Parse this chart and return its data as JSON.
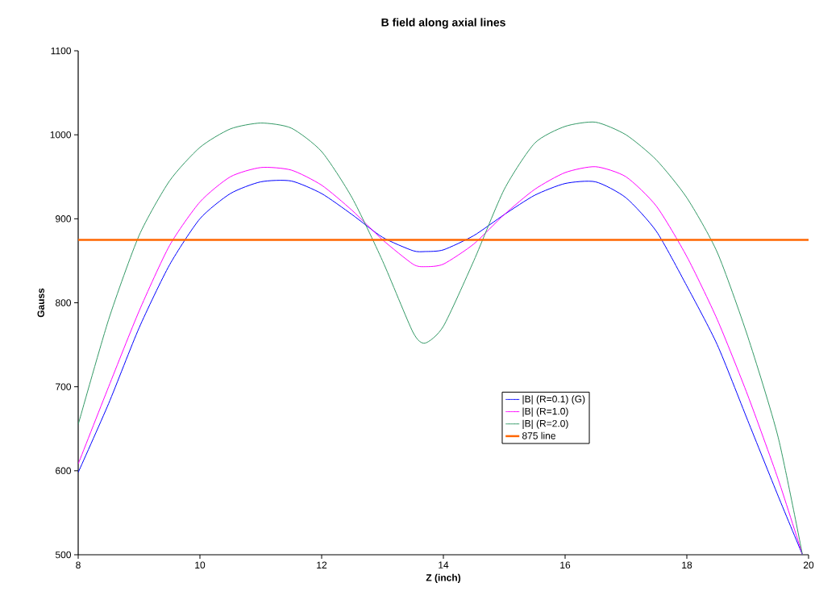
{
  "chart_data": {
    "type": "line",
    "title": "B field along axial lines",
    "xlabel": "Z (inch)",
    "ylabel": "Gauss",
    "x": [
      8,
      8.5,
      9,
      9.5,
      10,
      10.5,
      11,
      11.5,
      12,
      12.5,
      13,
      13.5,
      13.7,
      14,
      14.5,
      15,
      15.5,
      16,
      16.5,
      17,
      17.5,
      18,
      18.5,
      19,
      19.5,
      19.9
    ],
    "series": [
      {
        "name": "|B| (R=0.1) (G)",
        "color": "#0000ff",
        "values": [
          598,
          680,
          770,
          845,
          900,
          930,
          944,
          945,
          930,
          905,
          878,
          862,
          861,
          863,
          880,
          905,
          928,
          942,
          944,
          925,
          885,
          820,
          750,
          660,
          570,
          500
        ]
      },
      {
        "name": "|B| (R=1.0)",
        "color": "#ff00ff",
        "values": [
          608,
          700,
          790,
          868,
          920,
          950,
          961,
          958,
          940,
          910,
          875,
          846,
          843,
          846,
          870,
          905,
          935,
          955,
          962,
          950,
          915,
          855,
          780,
          690,
          590,
          500
        ]
      },
      {
        "name": "|B| (R=2.0)",
        "color": "#339966",
        "values": [
          655,
          780,
          880,
          945,
          985,
          1007,
          1014,
          1008,
          980,
          925,
          850,
          765,
          752,
          772,
          850,
          935,
          990,
          1010,
          1015,
          1000,
          970,
          925,
          860,
          760,
          640,
          500
        ]
      },
      {
        "name": "875 line",
        "color": "#ff6600",
        "x": [
          8,
          20
        ],
        "values": [
          875,
          875
        ]
      }
    ],
    "xlim": [
      8,
      20
    ],
    "ylim": [
      500,
      1100
    ],
    "xticks": [
      8,
      10,
      12,
      14,
      16,
      18,
      20
    ],
    "yticks": [
      500,
      600,
      700,
      800,
      900,
      1000,
      1100
    ],
    "grid": false,
    "legend": "right",
    "marker": "none",
    "line_style": "solid"
  }
}
